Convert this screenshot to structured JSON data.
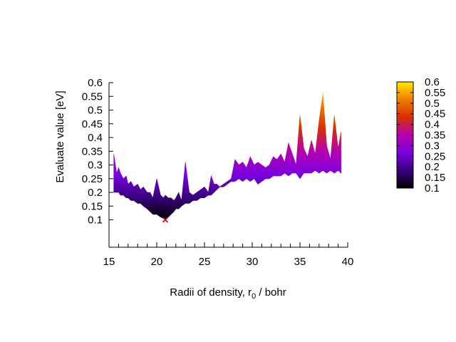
{
  "chart_data": {
    "type": "area",
    "title": "",
    "xlabel": "Radii of density, r",
    "xlabel_sub": "0",
    "xlabel_suffix": " / bohr",
    "ylabel": "Evaluate value [eV]",
    "xlim": [
      15,
      40
    ],
    "ylim": [
      0,
      0.6
    ],
    "x_ticks": [
      15,
      20,
      25,
      30,
      35,
      40
    ],
    "y_ticks": [
      0.1,
      0.15,
      0.2,
      0.25,
      0.3,
      0.35,
      0.4,
      0.45,
      0.5,
      0.55,
      0.6
    ],
    "y_tick_labels": [
      "0.1",
      "0.15",
      "0.2",
      "0.25",
      "0.3",
      "0.35",
      "0.4",
      "0.45",
      "0.5",
      "0.55",
      "0.6"
    ],
    "x_tick_labels": [
      "15",
      "20",
      "25",
      "30",
      "35",
      "40"
    ],
    "colorbar": {
      "range": [
        0.1,
        0.6
      ],
      "ticks": [
        "0.1",
        "0.15",
        "0.2",
        "0.25",
        "0.3",
        "0.35",
        "0.4",
        "0.45",
        "0.5",
        "0.55",
        "0.6"
      ],
      "colormap": [
        "#000000",
        "#3a0080",
        "#7a00e0",
        "#b400b0",
        "#d83000",
        "#f07a00",
        "#ffe800"
      ]
    },
    "minimum_marker": {
      "x": 20.9,
      "y": 0.1,
      "symbol": "x",
      "color": "#e00000"
    },
    "series": [
      {
        "x": [
          15.5,
          15.8,
          16.0,
          16.2,
          16.5,
          16.8,
          17.0,
          17.3,
          17.6,
          18.0,
          18.3,
          18.6,
          19.0,
          19.3,
          19.6,
          20.0,
          20.4,
          20.7,
          20.9,
          21.2,
          21.5,
          21.8,
          22.0,
          22.3,
          22.6,
          23.0,
          23.4,
          23.8,
          24.2,
          24.6,
          25.0,
          25.4,
          25.7,
          26.0,
          26.3,
          26.6,
          27.0,
          27.4,
          27.8,
          28.2,
          28.6,
          29.0,
          29.4,
          29.8,
          30.2,
          30.6,
          31.0,
          31.4,
          31.8,
          32.2,
          32.6,
          33.0,
          33.4,
          33.8,
          34.2,
          34.6,
          35.0,
          35.4,
          35.8,
          36.2,
          36.6,
          37.0,
          37.4,
          37.8,
          38.2,
          38.6,
          39.0,
          39.3
        ],
        "upper": [
          0.34,
          0.27,
          0.29,
          0.27,
          0.25,
          0.26,
          0.23,
          0.24,
          0.22,
          0.23,
          0.21,
          0.22,
          0.2,
          0.2,
          0.18,
          0.25,
          0.19,
          0.18,
          0.19,
          0.18,
          0.18,
          0.17,
          0.18,
          0.2,
          0.17,
          0.31,
          0.2,
          0.19,
          0.2,
          0.21,
          0.22,
          0.2,
          0.26,
          0.23,
          0.23,
          0.22,
          0.23,
          0.24,
          0.25,
          0.32,
          0.3,
          0.31,
          0.29,
          0.33,
          0.3,
          0.31,
          0.3,
          0.29,
          0.3,
          0.33,
          0.32,
          0.34,
          0.31,
          0.38,
          0.34,
          0.3,
          0.48,
          0.36,
          0.33,
          0.39,
          0.34,
          0.46,
          0.56,
          0.37,
          0.32,
          0.48,
          0.36,
          0.42
        ],
        "lower": [
          0.2,
          0.2,
          0.2,
          0.19,
          0.19,
          0.18,
          0.18,
          0.17,
          0.17,
          0.16,
          0.16,
          0.15,
          0.14,
          0.13,
          0.12,
          0.12,
          0.11,
          0.105,
          0.1,
          0.11,
          0.12,
          0.13,
          0.14,
          0.14,
          0.15,
          0.16,
          0.16,
          0.17,
          0.17,
          0.18,
          0.18,
          0.19,
          0.19,
          0.2,
          0.21,
          0.22,
          0.22,
          0.23,
          0.24,
          0.24,
          0.25,
          0.24,
          0.25,
          0.24,
          0.25,
          0.23,
          0.24,
          0.25,
          0.25,
          0.26,
          0.26,
          0.26,
          0.27,
          0.26,
          0.27,
          0.27,
          0.25,
          0.27,
          0.27,
          0.27,
          0.28,
          0.27,
          0.28,
          0.27,
          0.28,
          0.27,
          0.28,
          0.27
        ]
      }
    ]
  }
}
